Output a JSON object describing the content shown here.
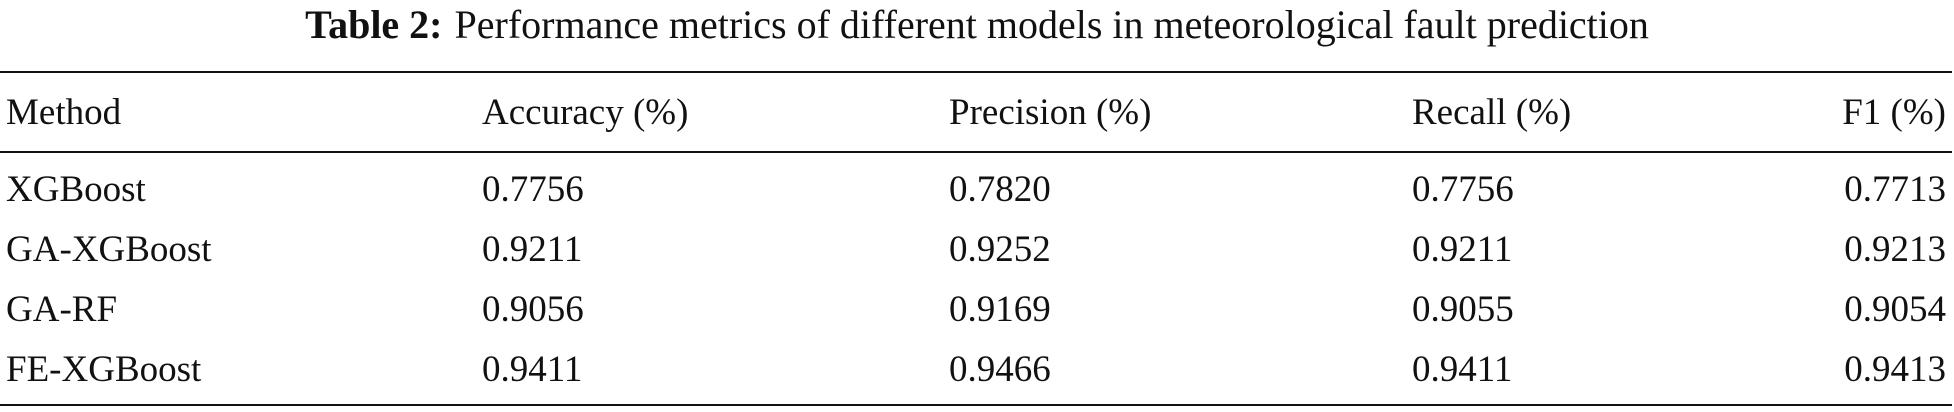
{
  "title": {
    "label": "Table 2:",
    "text": "Performance metrics of different models in meteorological fault prediction"
  },
  "table": {
    "header": [
      "Method",
      "Accuracy (%)",
      "Precision (%)",
      "Recall (%)",
      "F1 (%)"
    ],
    "rows": [
      [
        "XGBoost",
        "0.7756",
        "0.7820",
        "0.7756",
        "0.7713"
      ],
      [
        "GA-XGBoost",
        "0.9211",
        "0.9252",
        "0.9211",
        "0.9213"
      ],
      [
        "GA-RF",
        "0.9056",
        "0.9169",
        "0.9055",
        "0.9054"
      ],
      [
        "FE-XGBoost",
        "0.9411",
        "0.9466",
        "0.9411",
        "0.9413"
      ]
    ]
  }
}
